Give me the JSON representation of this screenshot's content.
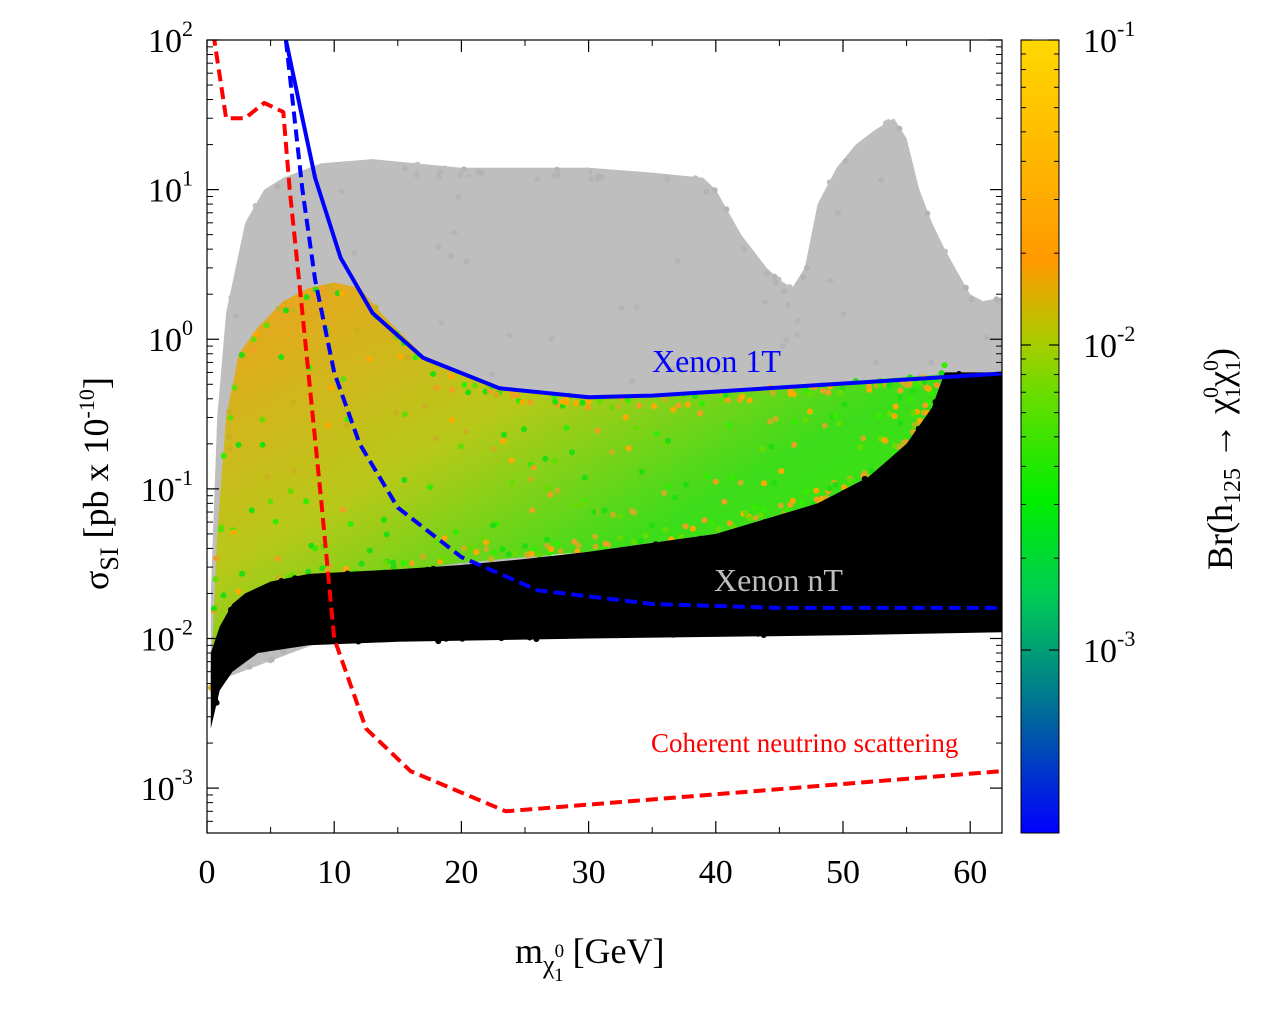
{
  "chart_data": {
    "type": "scatter",
    "title": "",
    "xlabel": {
      "base": "m",
      "sub": "χ",
      "subsup": "0",
      "subsub": "1",
      "rest": " [GeV]"
    },
    "ylabel": {
      "base": "σ",
      "sub": "SI",
      "rest": " [pb x 10",
      "exp": "-10",
      "close": "]"
    },
    "x_ticks": [
      "0",
      "10",
      "20",
      "30",
      "40",
      "50",
      "60"
    ],
    "x_tick_values": [
      0,
      10,
      20,
      30,
      40,
      50,
      60
    ],
    "xlim": [
      0,
      62.5
    ],
    "y_log": true,
    "ylim_log10": [
      -3.3,
      2.0
    ],
    "y_ticks": [
      {
        "base": "10",
        "exp": "2",
        "value": 2
      },
      {
        "base": "10",
        "exp": "1",
        "value": 1
      },
      {
        "base": "10",
        "exp": "0",
        "value": 0
      },
      {
        "base": "10",
        "exp": "-1",
        "value": -1
      },
      {
        "base": "10",
        "exp": "-2",
        "value": -2
      },
      {
        "base": "10",
        "exp": "-3",
        "value": -3
      }
    ],
    "colorbar": {
      "label": "Br(h125 → χ1⁰χ1⁰)",
      "label_parts": {
        "pre": "Br(h",
        "sub1": "125",
        "arrow": " → χ",
        "sup2": "0",
        "sub2": "1",
        "mid": "χ",
        "sup3": "0",
        "sub3": "1",
        "close": ")"
      },
      "log": true,
      "range_log10": [
        -3.6,
        -1.0
      ],
      "ticks": [
        {
          "base": "10",
          "exp": "-1",
          "value": -1
        },
        {
          "base": "10",
          "exp": "-2",
          "value": -2
        },
        {
          "base": "10",
          "exp": "-3",
          "value": -3
        }
      ],
      "colors": [
        "#0000ff",
        "#008080",
        "#00ee00",
        "#a0c000",
        "#ff9900",
        "#ffd700"
      ]
    },
    "series": [
      {
        "name": "Excluded points (gray)",
        "color": "#bebebe",
        "kind": "region"
      },
      {
        "name": "Allowed points colored by Br",
        "kind": "region"
      },
      {
        "name": "Below Xenon nT (black)",
        "color": "#000000",
        "kind": "region"
      },
      {
        "name": "Xenon 1T",
        "color": "#0000ff",
        "style": "solid",
        "x": [
          6.2,
          7.5,
          8.5,
          10.5,
          13,
          17,
          23,
          30,
          35,
          62.5
        ],
        "y": [
          100,
          30,
          12,
          3.5,
          1.5,
          0.75,
          0.47,
          0.41,
          0.42,
          0.59
        ]
      },
      {
        "name": "Xenon nT",
        "color": "#0000ff",
        "style": "dashed",
        "x": [
          6.2,
          7.5,
          8.5,
          10,
          12,
          15,
          20,
          26,
          35,
          45,
          62.5
        ],
        "y": [
          100,
          10,
          2.5,
          0.6,
          0.2,
          0.075,
          0.035,
          0.021,
          0.017,
          0.016,
          0.016
        ]
      },
      {
        "name": "Coherent neutrino scattering",
        "color": "#ff0000",
        "style": "dashed",
        "x": [
          0.5,
          1.5,
          3,
          4.5,
          6,
          6.5,
          7.5,
          9,
          10,
          12.5,
          16,
          23.5,
          62.5
        ],
        "y": [
          110,
          30,
          30,
          38,
          33,
          10,
          1.5,
          0.08,
          0.01,
          0.0025,
          0.0013,
          0.0007,
          0.0013
        ]
      }
    ],
    "annotations": [
      {
        "text": "Xenon 1T",
        "color": "#0000ff",
        "x": 45,
        "y": 0.75
      },
      {
        "text": "Xenon nT",
        "color": "#bebebe",
        "x": 46,
        "y": 0.022
      },
      {
        "text": "Coherent neutrino scattering",
        "color": "#ff0000",
        "x": 51,
        "y": 0.0025
      }
    ]
  }
}
